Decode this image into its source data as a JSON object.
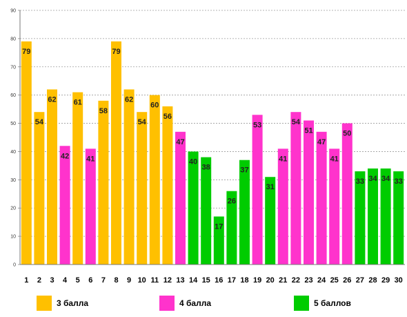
{
  "chart_data": {
    "type": "bar",
    "categories": [
      "1",
      "2",
      "3",
      "4",
      "5",
      "6",
      "7",
      "8",
      "9",
      "10",
      "11",
      "12",
      "13",
      "14",
      "15",
      "16",
      "17",
      "18",
      "19",
      "20",
      "21",
      "22",
      "23",
      "24",
      "25",
      "26",
      "27",
      "28",
      "29",
      "30"
    ],
    "values": [
      79,
      54,
      62,
      42,
      61,
      41,
      58,
      79,
      62,
      54,
      60,
      56,
      47,
      40,
      38,
      17,
      26,
      37,
      53,
      31,
      41,
      54,
      51,
      47,
      41,
      50,
      33,
      34,
      34,
      33
    ],
    "groups": [
      0,
      0,
      0,
      1,
      0,
      1,
      0,
      0,
      0,
      0,
      0,
      0,
      1,
      2,
      2,
      2,
      2,
      2,
      1,
      2,
      1,
      1,
      1,
      1,
      1,
      1,
      2,
      2,
      2,
      2
    ],
    "legend": [
      {
        "label": "3 балла",
        "color": "#FFC000"
      },
      {
        "label": "4 балла",
        "color": "#FF33CC"
      },
      {
        "label": "5 баллов",
        "color": "#00CC00"
      }
    ],
    "yticks": [
      "0",
      "10",
      "20",
      "30",
      "40",
      "50",
      "60",
      "70",
      "80",
      "90"
    ],
    "ylim": [
      0,
      90
    ],
    "grid": true,
    "legend_position": "bottom",
    "title": "",
    "xlabel": "",
    "ylabel": ""
  }
}
